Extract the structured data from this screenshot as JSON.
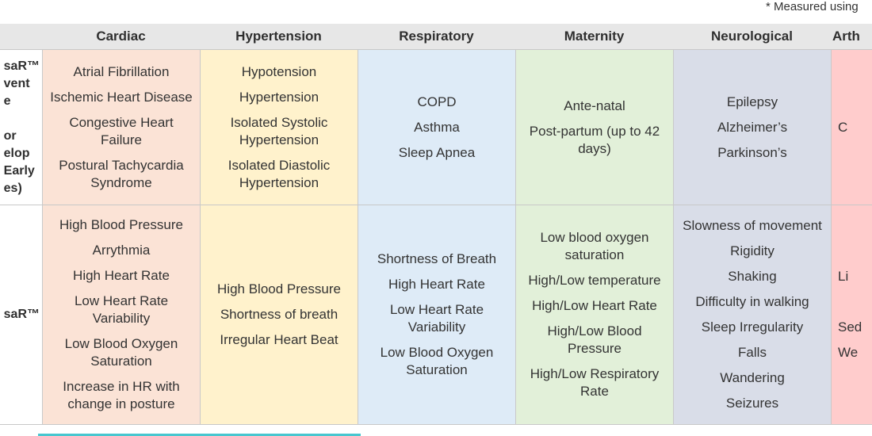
{
  "footnote": "* Measured using",
  "headers": {
    "cardiac": "Cardiac",
    "hypertension": "Hypertension",
    "respiratory": "Respiratory",
    "maternity": "Maternity",
    "neurological": "Neurological",
    "arthritis": "Arth"
  },
  "row1": {
    "label_lines": [
      "saR™",
      "vent",
      "e",
      "",
      "or",
      "elop",
      "Early",
      "es)"
    ],
    "cardiac": [
      "Atrial Fibrillation",
      "Ischemic Heart Disease",
      "Congestive Heart Failure",
      "Postural Tachycardia Syndrome"
    ],
    "hypertension": [
      "Hypotension",
      "Hypertension",
      "Isolated Systolic Hypertension",
      "Isolated Diastolic Hypertension"
    ],
    "respiratory": [
      "COPD",
      "Asthma",
      "Sleep Apnea"
    ],
    "maternity": [
      "Ante-natal",
      "Post-partum (up to 42 days)"
    ],
    "neurological": [
      "Epilepsy",
      "Alzheimer’s",
      "Parkinson’s"
    ],
    "arthritis": [
      "C"
    ]
  },
  "row2": {
    "label_lines": [
      "saR™"
    ],
    "cardiac": [
      "High Blood Pressure",
      "Arrythmia",
      "High Heart Rate",
      "Low Heart Rate Variability",
      "Low Blood Oxygen Saturation",
      "Increase in HR with change in posture"
    ],
    "hypertension": [
      "High Blood Pressure",
      "Shortness of breath",
      "Irregular Heart Beat"
    ],
    "respiratory": [
      "Shortness of Breath",
      "High Heart Rate",
      "Low Heart Rate Variability",
      "Low Blood Oxygen Saturation"
    ],
    "maternity": [
      "Low blood oxygen saturation",
      "High/Low temperature",
      "High/Low Heart Rate",
      "High/Low Blood Pressure",
      "High/Low Respiratory Rate"
    ],
    "neurological": [
      "Slowness of movement",
      "Rigidity",
      "Shaking",
      "Difficulty in walking",
      "Sleep Irregularity",
      "Falls",
      "Wandering",
      "Seizures"
    ],
    "arthritis": [
      "Li",
      "",
      "Sed",
      "We"
    ]
  },
  "colors": {
    "cardiac": "#fbe3d6",
    "hypertension": "#fff2cc",
    "respiratory": "#deebf7",
    "maternity": "#e2f0d9",
    "neurological": "#d9dde8",
    "arthritis": "#ffcccc",
    "header": "#e7e7e7",
    "accent_line": "#48c6cf"
  }
}
